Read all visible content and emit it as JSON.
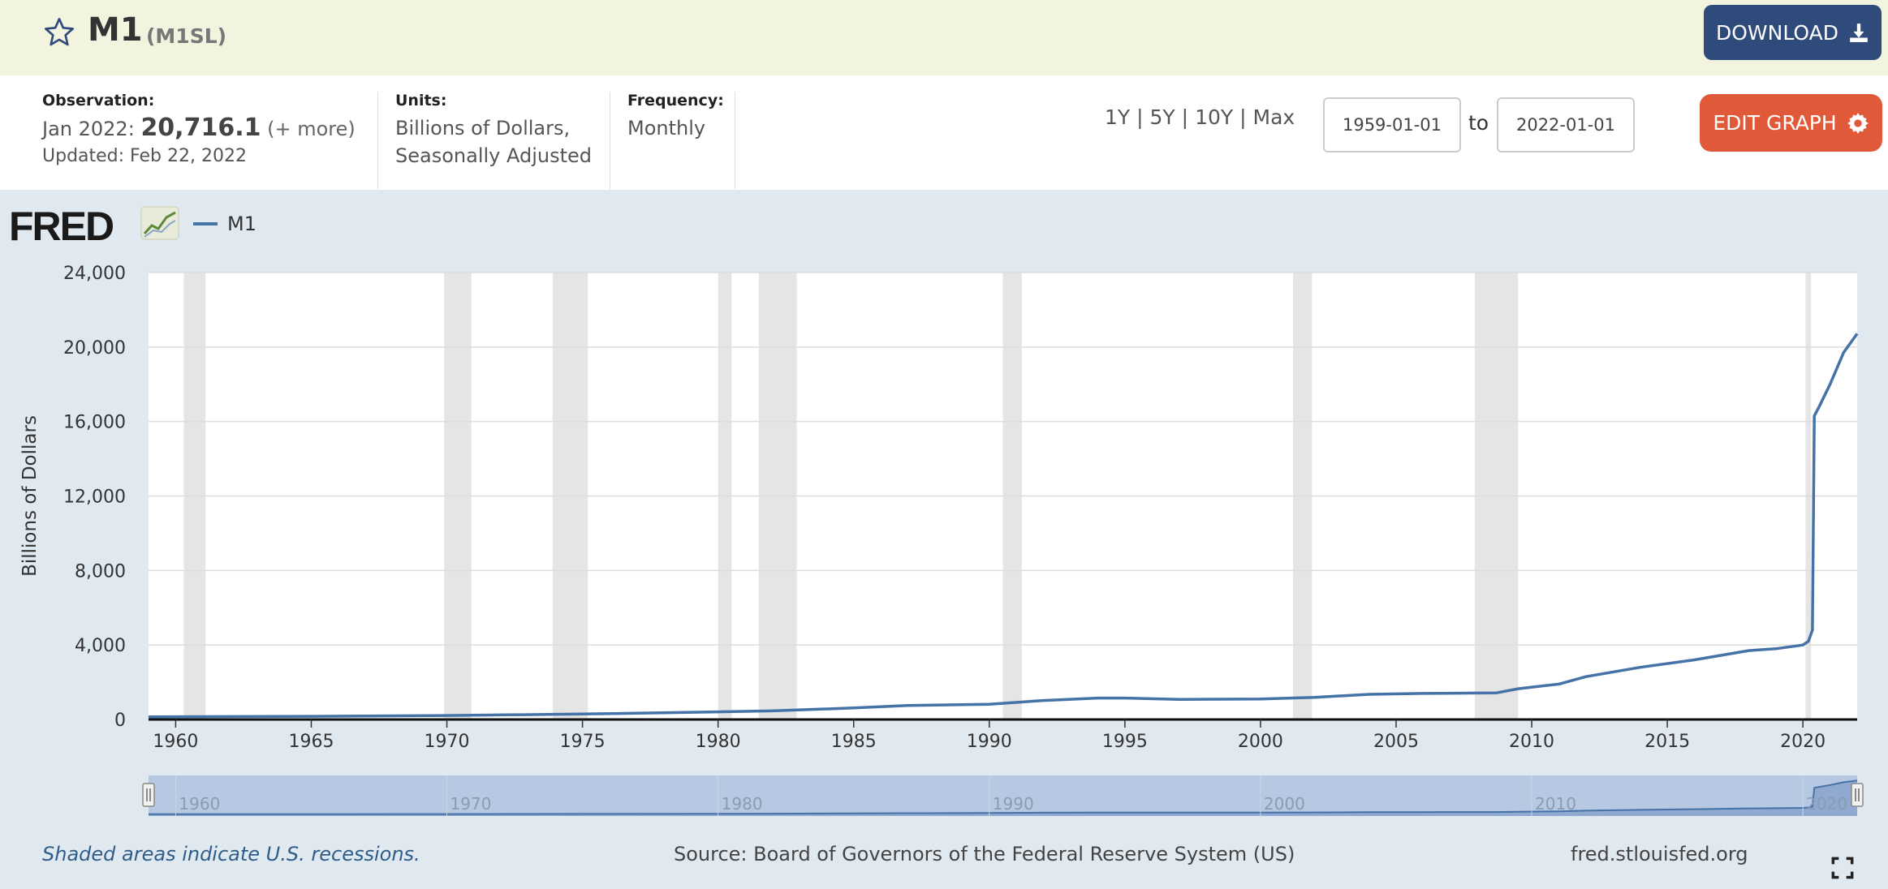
{
  "header": {
    "title": "M1",
    "series_id": "(M1SL)",
    "download_label": "DOWNLOAD"
  },
  "info": {
    "observation_label": "Observation:",
    "observation_period": "Jan 2022:",
    "observation_value": "20,716.1",
    "observation_more": "(+ more)",
    "updated": "Updated: Feb 22, 2022",
    "units_label": "Units:",
    "units_line1": "Billions of Dollars,",
    "units_line2": "Seasonally Adjusted",
    "frequency_label": "Frequency:",
    "frequency_value": "Monthly"
  },
  "controls": {
    "ranges": [
      "1Y",
      "5Y",
      "10Y",
      "Max"
    ],
    "separator": "|",
    "start_date": "1959-01-01",
    "to_label": "to",
    "end_date": "2022-01-01",
    "edit_label": "EDIT GRAPH"
  },
  "logo_text": "FRED",
  "footer": {
    "note": "Shaded areas indicate U.S. recessions.",
    "source": "Source: Board of Governors of the Federal Reserve System (US)",
    "site": "fred.stlouisfed.org"
  },
  "colors": {
    "series": "#4572a7",
    "recession": "#e5e5e5",
    "download_bg": "#2f4b7c",
    "edit_bg": "#e05a3a",
    "header_bg": "#f3f4df",
    "page_bg": "#e1e9f0"
  },
  "chart_data": {
    "type": "line",
    "legend": "M1",
    "ylabel": "Billions of Dollars",
    "xlim": [
      1959.0,
      2022.0
    ],
    "ylim": [
      0,
      24000
    ],
    "yticks": [
      0,
      4000,
      8000,
      12000,
      16000,
      20000,
      24000
    ],
    "ytick_labels": [
      "0",
      "4,000",
      "8,000",
      "12,000",
      "16,000",
      "20,000",
      "24,000"
    ],
    "xticks": [
      1960,
      1965,
      1970,
      1975,
      1980,
      1985,
      1990,
      1995,
      2000,
      2005,
      2010,
      2015,
      2020
    ],
    "grid": true,
    "recessions": [
      [
        1960.3,
        1961.1
      ],
      [
        1969.9,
        1970.9
      ],
      [
        1973.9,
        1975.2
      ],
      [
        1980.0,
        1980.5
      ],
      [
        1981.5,
        1982.9
      ],
      [
        1990.5,
        1991.2
      ],
      [
        2001.2,
        2001.9
      ],
      [
        2007.9,
        2009.5
      ],
      [
        2020.1,
        2020.3
      ]
    ],
    "series": [
      {
        "name": "M1",
        "x": [
          1959.0,
          1965.0,
          1970.0,
          1975.0,
          1980.0,
          1982.0,
          1985.0,
          1987.0,
          1990.0,
          1992.0,
          1994.0,
          1995.0,
          1997.0,
          2000.0,
          2002.0,
          2004.0,
          2006.0,
          2008.0,
          2008.7,
          2009.5,
          2011.0,
          2012.0,
          2014.0,
          2016.0,
          2018.0,
          2019.0,
          2020.0,
          2020.2,
          2020.35,
          2020.42,
          2020.6,
          2021.0,
          2021.5,
          2022.0
        ],
        "y": [
          140,
          170,
          215,
          290,
          410,
          460,
          620,
          750,
          820,
          1020,
          1150,
          1150,
          1080,
          1100,
          1190,
          1350,
          1400,
          1420,
          1430,
          1650,
          1900,
          2300,
          2800,
          3200,
          3700,
          3800,
          4000,
          4200,
          4800,
          16300,
          16800,
          18000,
          19700,
          20716.1
        ]
      }
    ],
    "navigator_xticks": [
      1960,
      1970,
      1980,
      1990,
      2000,
      2010,
      2020
    ]
  }
}
